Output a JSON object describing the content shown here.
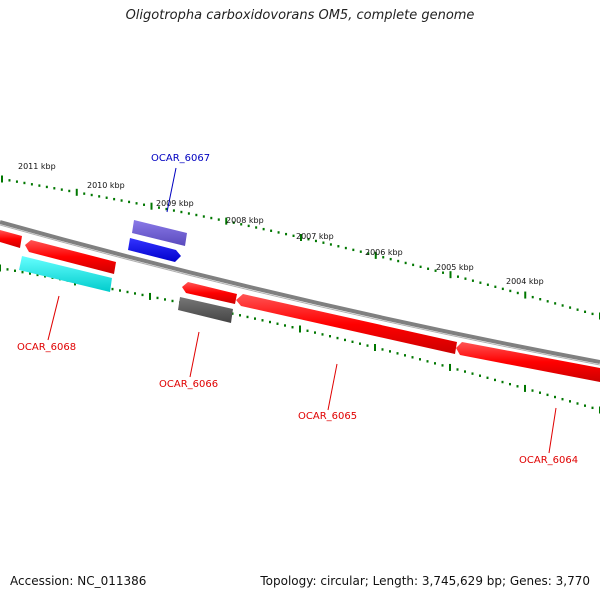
{
  "title": "Oligotropha carboxidovorans OM5, complete genome",
  "footer": {
    "accession": "Accession: NC_011386",
    "summary": "Topology: circular; Length: 3,745,629 bp; Genes: 3,770"
  },
  "ruler_labels": [
    "2011 kbp",
    "2010 kbp",
    "2009 kbp",
    "2008 kbp",
    "2007 kbp",
    "2006 kbp",
    "2005 kbp",
    "2004 kbp"
  ],
  "gene_labels": {
    "ocar_6067": "OCAR_6067",
    "ocar_6068": "OCAR_6068",
    "ocar_6066": "OCAR_6066",
    "ocar_6065": "OCAR_6065",
    "ocar_6064": "OCAR_6064"
  },
  "colors": {
    "cds_red": "#ff0000",
    "label_red": "#e00000",
    "label_blue": "#0000c0",
    "backbone": "#888888",
    "tick": "#007700",
    "cyan": "#00e0e0",
    "blue": "#0000ee",
    "purple": "#6a5acd",
    "grey": "#555555"
  }
}
